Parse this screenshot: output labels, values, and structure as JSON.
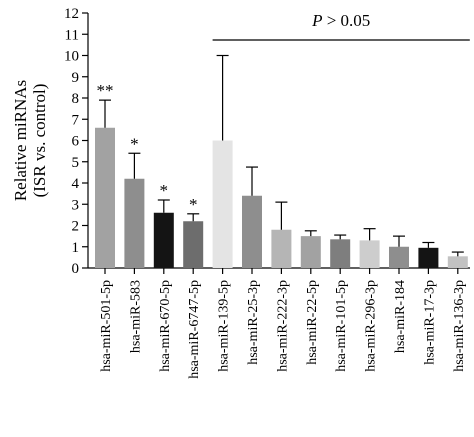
{
  "chart_data": {
    "type": "bar",
    "ylabel_lines": [
      "Relative miRNAs",
      "(ISR vs. control)"
    ],
    "ylim": [
      0,
      12
    ],
    "yticks": [
      0,
      1,
      2,
      3,
      4,
      5,
      6,
      7,
      8,
      9,
      10,
      11,
      12
    ],
    "categories": [
      "hsa-miR-501-5p",
      "hsa-miR-583",
      "hsa-miR-670-5p",
      "hsa-miR-6747-5p",
      "hsa-miR-139-5p",
      "hsa-miR-25-3p",
      "hsa-miR-222-3p",
      "hsa-miR-22-5p",
      "hsa-miR-101-5p",
      "hsa-miR-296-3p",
      "hsa-miR-184",
      "hsa-miR-17-3p",
      "hsa-miR-136-3p"
    ],
    "values": [
      6.6,
      4.2,
      2.6,
      2.2,
      6.0,
      3.4,
      1.8,
      1.5,
      1.35,
      1.3,
      1.0,
      0.95,
      0.55
    ],
    "errors": [
      1.3,
      1.2,
      0.6,
      0.35,
      4.0,
      1.35,
      1.3,
      0.25,
      0.2,
      0.55,
      0.5,
      0.25,
      0.2
    ],
    "colors": [
      "#a2a2a2",
      "#8e8e8e",
      "#141414",
      "#6d6d6d",
      "#e4e4e4",
      "#8e8e8e",
      "#b5b5b5",
      "#a2a2a2",
      "#7e7e7e",
      "#cdcdcd",
      "#8e8e8e",
      "#141414",
      "#c2c2c2"
    ],
    "significance": [
      "**",
      "*",
      "*",
      "*",
      "",
      "",
      "",
      "",
      "",
      "",
      "",
      "",
      ""
    ],
    "annotation": {
      "text_italic": "P",
      "text_rest": " > 0.05",
      "from_index": 4,
      "to_index": 12
    },
    "grid": false,
    "legend": "none"
  }
}
